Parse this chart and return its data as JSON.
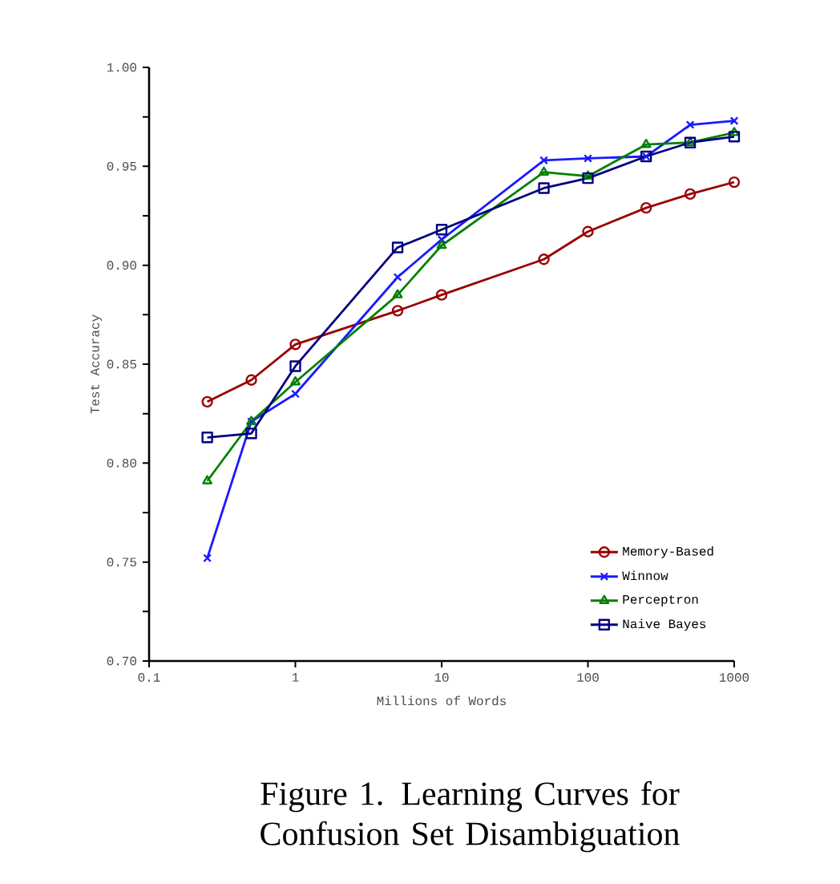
{
  "chart_data": {
    "type": "line",
    "xlabel": "Millions of Words",
    "ylabel": "Test Accuracy",
    "x": [
      0.25,
      0.5,
      1,
      5,
      10,
      50,
      100,
      250,
      500,
      1000
    ],
    "series": [
      {
        "name": "Memory-Based",
        "color": "#990000",
        "marker": "circle",
        "values": [
          0.831,
          0.842,
          0.86,
          0.877,
          0.885,
          0.903,
          0.917,
          0.929,
          0.936,
          0.942
        ]
      },
      {
        "name": "Winnow",
        "color": "#1a1aff",
        "marker": "cross",
        "values": [
          0.752,
          0.821,
          0.835,
          0.894,
          0.913,
          0.953,
          0.954,
          0.955,
          0.971,
          0.973
        ]
      },
      {
        "name": "Perceptron",
        "color": "#008000",
        "marker": "triangle",
        "values": [
          0.791,
          0.821,
          0.841,
          0.885,
          0.91,
          0.947,
          0.945,
          0.961,
          0.962,
          0.967
        ]
      },
      {
        "name": "Naive Bayes",
        "color": "#000080",
        "marker": "square",
        "values": [
          0.813,
          0.815,
          0.849,
          0.909,
          0.918,
          0.939,
          0.944,
          0.955,
          0.962,
          0.965
        ]
      }
    ],
    "log": "x",
    "xlim": [
      0.1,
      1000
    ],
    "ylim": [
      0.7,
      1.0
    ],
    "xticks": [
      0.1,
      1,
      10,
      100,
      1000
    ],
    "yticks": [
      {
        "value": 0.7,
        "label": "0.70"
      },
      {
        "value": 0.725,
        "label": null
      },
      {
        "value": 0.75,
        "label": "0.75"
      },
      {
        "value": 0.775,
        "label": null
      },
      {
        "value": 0.8,
        "label": "0.80"
      },
      {
        "value": 0.825,
        "label": null
      },
      {
        "value": 0.85,
        "label": "0.85"
      },
      {
        "value": 0.875,
        "label": null
      },
      {
        "value": 0.9,
        "label": "0.90"
      },
      {
        "value": 0.925,
        "label": null
      },
      {
        "value": 0.95,
        "label": "0.95"
      },
      {
        "value": 0.975,
        "label": null
      },
      {
        "value": 1.0,
        "label": "1.00"
      }
    ],
    "grid": false,
    "legend": "bottom right",
    "line_style": "solid",
    "annotations": [
      "Figure 1. Learning Curves for Confusion Set Disambiguation"
    ]
  }
}
